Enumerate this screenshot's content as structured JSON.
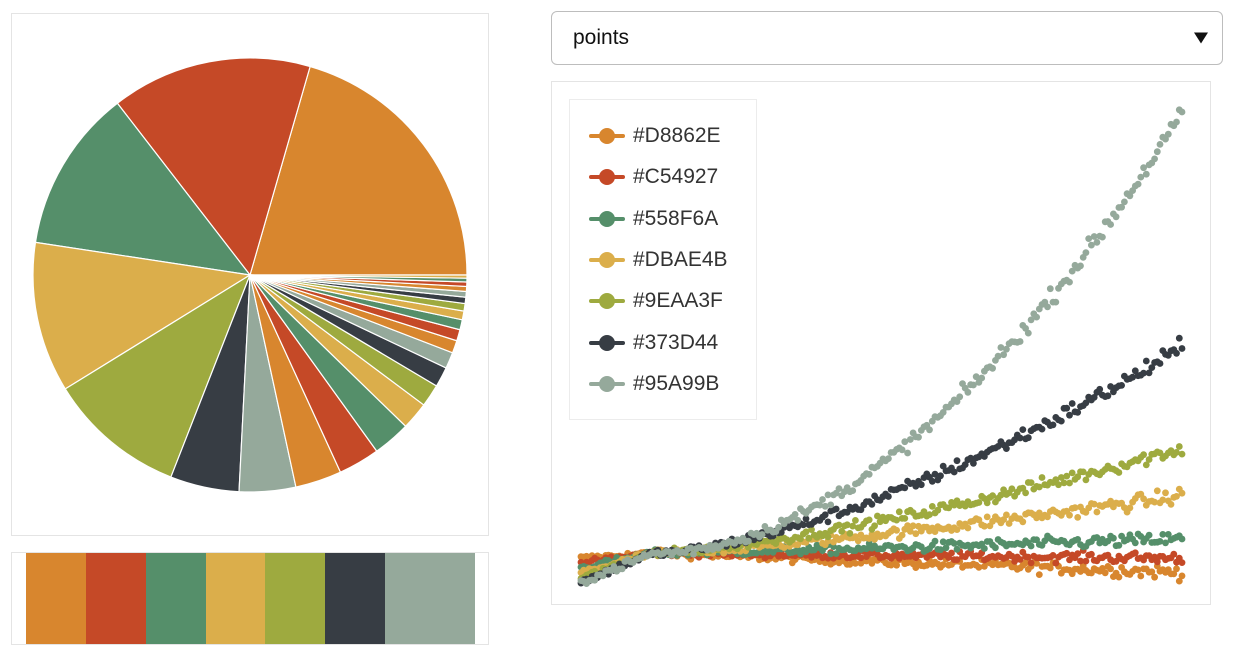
{
  "select": {
    "value": "points"
  },
  "palette": {
    "colors": [
      "#D8862E",
      "#C54927",
      "#558F6A",
      "#DBAE4B",
      "#9EAA3F",
      "#373D44",
      "#95A99B"
    ]
  },
  "chart_data": [
    {
      "type": "pie",
      "values": [
        22,
        16,
        13,
        12,
        11,
        5.5,
        4.5,
        3.7,
        3.3,
        3.0,
        2.2,
        1.8,
        1.6,
        1.3,
        1.0,
        0.9,
        0.8,
        0.7,
        0.6,
        0.5,
        0.45,
        0.4,
        0.35,
        0.3,
        0.25
      ],
      "colors": [
        "#D8862E",
        "#C54927",
        "#558F6A",
        "#DBAE4B",
        "#9EAA3F",
        "#373D44",
        "#95A99B",
        "#D8862E",
        "#C54927",
        "#558F6A",
        "#DBAE4B",
        "#9EAA3F",
        "#373D44",
        "#95A99B",
        "#D8862E",
        "#C54927",
        "#558F6A",
        "#DBAE4B",
        "#9EAA3F",
        "#373D44",
        "#95A99B",
        "#D8862E",
        "#C54927",
        "#558F6A",
        "#DBAE4B"
      ]
    },
    {
      "type": "bar",
      "description": "palette swatch strip",
      "categories": [
        "#D8862E",
        "#C54927",
        "#558F6A",
        "#DBAE4B",
        "#9EAA3F",
        "#373D44",
        "#95A99B"
      ],
      "values": [
        1,
        1,
        1,
        1,
        1,
        1,
        1.5
      ]
    },
    {
      "type": "scatter",
      "legend": "top-left",
      "x_range": [
        0,
        1
      ],
      "y_range": [
        0,
        1
      ],
      "series": [
        {
          "name": "#D8862E",
          "color": "#D8862E",
          "start": 0.05,
          "end": 0.02,
          "curve": 1,
          "spread": 0.014
        },
        {
          "name": "#C54927",
          "color": "#C54927",
          "start": 0.04,
          "end": 0.05,
          "curve": 1,
          "spread": 0.012
        },
        {
          "name": "#558F6A",
          "color": "#558F6A",
          "start": 0.03,
          "end": 0.09,
          "curve": 1.2,
          "spread": 0.014
        },
        {
          "name": "#DBAE4B",
          "color": "#DBAE4B",
          "start": 0.02,
          "end": 0.18,
          "curve": 1.3,
          "spread": 0.016
        },
        {
          "name": "#9EAA3F",
          "color": "#9EAA3F",
          "start": 0.01,
          "end": 0.28,
          "curve": 1.4,
          "spread": 0.016
        },
        {
          "name": "#373D44",
          "color": "#373D44",
          "start": 0.0,
          "end": 0.49,
          "curve": 1.55,
          "spread": 0.018
        },
        {
          "name": "#95A99B",
          "color": "#95A99B",
          "start": 0.0,
          "end": 0.98,
          "curve": 1.9,
          "spread": 0.02
        }
      ]
    }
  ]
}
